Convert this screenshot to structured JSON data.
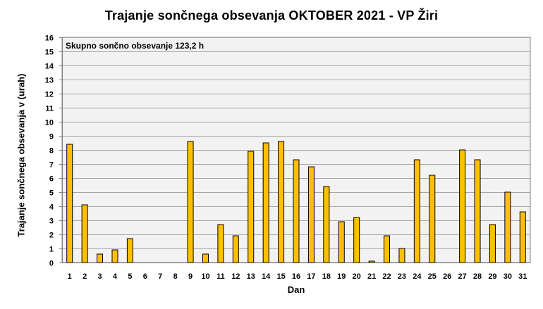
{
  "chart_data": {
    "type": "bar",
    "title": "Trajanje  sončnega  obsevanja  OKTOBER  2021 - VP Žiri",
    "xlabel": "Dan",
    "ylabel": "Trajanje  sončnega obsevanja  v (urah)",
    "annotation": "Skupno sončno obsevanje 123,2 h",
    "categories": [
      "1",
      "2",
      "3",
      "4",
      "5",
      "6",
      "7",
      "8",
      "9",
      "10",
      "11",
      "12",
      "13",
      "14",
      "15",
      "16",
      "17",
      "18",
      "19",
      "20",
      "21",
      "22",
      "23",
      "24",
      "25",
      "26",
      "27",
      "28",
      "29",
      "30",
      "31"
    ],
    "values": [
      8.4,
      4.1,
      0.6,
      0.9,
      1.7,
      0,
      0,
      0,
      8.6,
      0.6,
      2.7,
      1.9,
      7.9,
      8.5,
      8.6,
      7.3,
      6.8,
      5.4,
      2.9,
      3.2,
      0.1,
      1.9,
      1.0,
      7.3,
      6.2,
      0,
      8.0,
      7.3,
      2.7,
      5.0,
      3.6
    ],
    "ylim": [
      0,
      16
    ],
    "yticks": [
      0,
      1,
      2,
      3,
      4,
      5,
      6,
      7,
      8,
      9,
      10,
      11,
      12,
      13,
      14,
      15,
      16
    ],
    "grid": true,
    "bar_color": "#FFC000",
    "bar_edge_color": "#000000",
    "plot_background": "#F2F2F2",
    "gridline_color": "#A6A6A6"
  }
}
